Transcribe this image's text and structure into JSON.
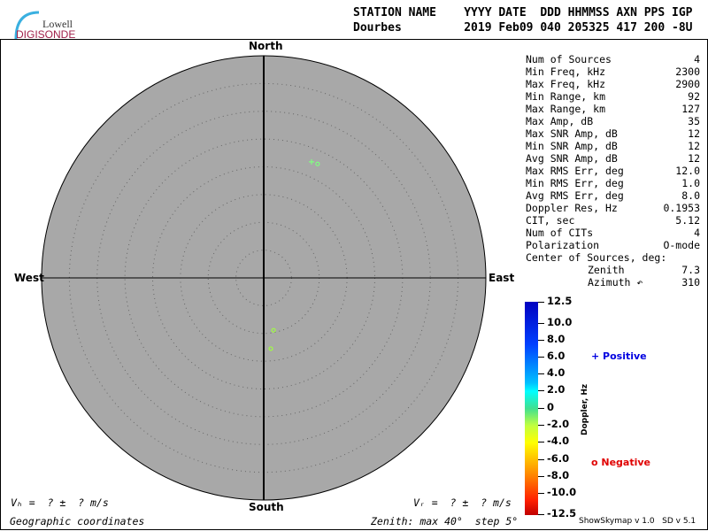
{
  "logo": {
    "line1": "Lowell",
    "line2": "DIGISONDE"
  },
  "header": {
    "labels": "STATION NAME    YYYY DATE  DDD HHMMSS AXN PPS IGP",
    "values": "Dourbes         2019 Feb09 040 205325 417 200 -8U"
  },
  "directions": {
    "north": "North",
    "south": "South",
    "east": "East",
    "west": "West"
  },
  "stats": [
    {
      "label": "Num of Sources",
      "value": "4"
    },
    {
      "label": "Min Freq, kHz",
      "value": "2300"
    },
    {
      "label": "Max Freq, kHz",
      "value": "2900"
    },
    {
      "label": "Min Range, km",
      "value": "92"
    },
    {
      "label": "Max Range, km",
      "value": "127"
    },
    {
      "label": "Max Amp, dB",
      "value": "35"
    },
    {
      "label": "Max SNR Amp, dB",
      "value": "12"
    },
    {
      "label": "Min SNR Amp, dB",
      "value": "12"
    },
    {
      "label": "Avg SNR Amp, dB",
      "value": "12"
    },
    {
      "label": "Max RMS Err, deg",
      "value": "12.0"
    },
    {
      "label": "Min RMS Err, deg",
      "value": "1.0"
    },
    {
      "label": "Avg RMS Err, deg",
      "value": "8.0"
    },
    {
      "label": "Doppler Res, Hz",
      "value": "0.1953"
    },
    {
      "label": "CIT, sec",
      "value": "5.12"
    },
    {
      "label": "Num of CITs",
      "value": "4"
    },
    {
      "label": "Polarization",
      "value": "O-mode"
    }
  ],
  "center": {
    "title": "Center of Sources, deg:",
    "zenith_label": "Zenith",
    "zenith": "7.3",
    "azimuth_label": "Azimuth ↶",
    "azimuth": "310"
  },
  "colorbar": {
    "title": "Doppler, Hz",
    "ticks": [
      "12.5",
      "10.0",
      "8.0",
      "6.0",
      "4.0",
      "2.0",
      "0",
      "-2.0",
      "-4.0",
      "-6.0",
      "-8.0",
      "-10.0",
      "-12.5"
    ]
  },
  "legend": {
    "positive": "+ Positive",
    "negative": "o Negative",
    "positive_color": "#0000e0",
    "negative_color": "#e00000"
  },
  "footer": {
    "vh": "Vₕ =  ? ±  ? m/s",
    "vz": "Vᵣ =  ? ±  ? m/s",
    "coords": "Geographic coordinates",
    "zenith_info": "Zenith: max 40°  step 5°",
    "version": "ShowSkymap v 1.0   SD v 5.1"
  },
  "skymap": {
    "zenith_max": 40,
    "zenith_step": 5,
    "background": "#a8a8a8",
    "sources": [
      {
        "zenith": 22.6,
        "azimuth": 22.4,
        "sign": "positive",
        "color": "#80ff80"
      },
      {
        "zenith": 22.7,
        "azimuth": 25.3,
        "sign": "negative",
        "color": "#80ff80"
      },
      {
        "zenith": 9.6,
        "azimuth": 169.4,
        "sign": "negative",
        "color": "#a0ff40"
      },
      {
        "zenith": 12.8,
        "azimuth": 174.3,
        "sign": "negative",
        "color": "#a0ff40"
      }
    ]
  }
}
